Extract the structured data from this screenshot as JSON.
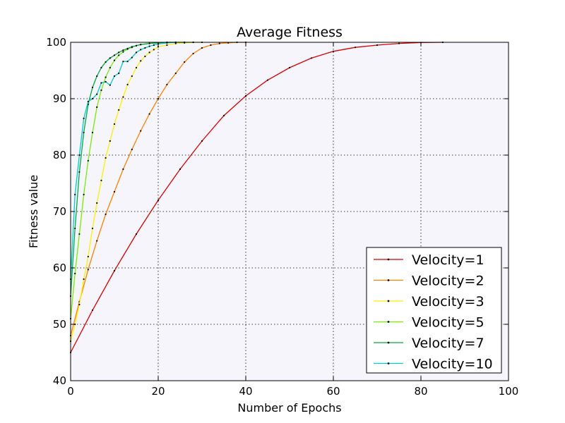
{
  "chart_data": {
    "type": "line",
    "title": "Average Fitness",
    "xlabel": "Number of Epochs",
    "ylabel": "Fitness value",
    "xlim": [
      0,
      100
    ],
    "ylim": [
      40,
      100
    ],
    "xticks": [
      "0",
      "20",
      "40",
      "60",
      "80",
      "100"
    ],
    "yticks": [
      "40",
      "50",
      "60",
      "70",
      "80",
      "90",
      "100"
    ],
    "grid": true,
    "legend_position": "bottom-right",
    "plot_background": "#f5f5fb",
    "marker_color": "#000000",
    "series": [
      {
        "name": "Velocity=1",
        "color": "#dd0000",
        "x": [
          0,
          5,
          10,
          15,
          20,
          25,
          30,
          35,
          40,
          45,
          50,
          55,
          60,
          65,
          70,
          75,
          80,
          85
        ],
        "y": [
          45,
          52.5,
          59.5,
          66,
          72,
          77.5,
          82.5,
          87,
          90.5,
          93.3,
          95.5,
          97.2,
          98.4,
          99.1,
          99.5,
          99.8,
          99.95,
          100
        ]
      },
      {
        "name": "Velocity=2",
        "color": "#ff8000",
        "x": [
          0,
          2,
          4,
          6,
          8,
          10,
          12,
          14,
          16,
          18,
          20,
          22,
          24,
          26,
          28,
          30,
          32,
          34,
          36,
          38,
          40
        ],
        "y": [
          48,
          54,
          59.7,
          64.8,
          69.5,
          73.5,
          77.5,
          81,
          84.3,
          87.3,
          90,
          92.5,
          94.5,
          96.5,
          98,
          99,
          99.5,
          99.8,
          99.9,
          100,
          100
        ]
      },
      {
        "name": "Velocity=3",
        "color": "#ffee00",
        "x": [
          0,
          1,
          2,
          3,
          4,
          5,
          6,
          7,
          8,
          9,
          10,
          11,
          12,
          13,
          14,
          15,
          16,
          17,
          18,
          19,
          20,
          22,
          24,
          26,
          28,
          30
        ],
        "y": [
          47,
          50,
          53.5,
          58,
          62,
          67,
          71.5,
          75.5,
          79.5,
          82.5,
          85.5,
          88,
          90.3,
          92.5,
          94,
          95.5,
          96.7,
          97.5,
          98.2,
          98.7,
          99.2,
          99.5,
          99.8,
          99.9,
          100,
          100
        ]
      },
      {
        "name": "Velocity=5",
        "color": "#77ee00",
        "x": [
          0,
          1,
          2,
          3,
          4,
          5,
          6,
          7,
          8,
          9,
          10,
          11,
          12,
          13,
          14,
          15,
          16,
          18,
          20,
          22,
          24,
          26,
          28
        ],
        "y": [
          51,
          59,
          66,
          73,
          79,
          84,
          88.5,
          91.5,
          93.8,
          95.5,
          96.8,
          97.7,
          98.3,
          98.8,
          99.1,
          99.4,
          99.6,
          99.8,
          99.9,
          100,
          100,
          100,
          100
        ]
      },
      {
        "name": "Velocity=7",
        "color": "#00aa44",
        "x": [
          0,
          1,
          2,
          3,
          4,
          5,
          6,
          7,
          8,
          9,
          10,
          11,
          12,
          13,
          14,
          15,
          16,
          18,
          20,
          22,
          24
        ],
        "y": [
          55,
          67,
          77,
          84,
          89,
          92,
          94,
          95.5,
          96.5,
          97.2,
          97.7,
          98.2,
          98.6,
          98.9,
          99.2,
          99.4,
          99.6,
          99.8,
          99.9,
          100,
          100
        ]
      },
      {
        "name": "Velocity=10",
        "color": "#00cccc",
        "x": [
          0,
          1,
          2,
          3,
          4,
          5,
          6,
          7,
          8,
          9,
          10,
          11,
          12,
          13,
          14,
          15,
          16,
          17,
          18,
          19,
          20,
          22,
          24,
          26
        ],
        "y": [
          58,
          73,
          80,
          86.5,
          89.5,
          90,
          90.8,
          92.8,
          93,
          92.4,
          94,
          94.5,
          96.6,
          96.6,
          97.3,
          98.2,
          98.7,
          99,
          99.3,
          99.5,
          99.7,
          99.9,
          100,
          100
        ]
      }
    ]
  }
}
